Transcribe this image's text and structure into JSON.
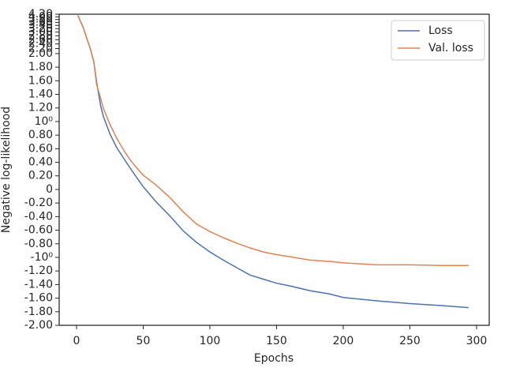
{
  "chart_data": {
    "type": "line",
    "xlabel": "Epochs",
    "ylabel": "Negative log-likelihood",
    "x": [
      1,
      5,
      10,
      13,
      15,
      18,
      20,
      25,
      30,
      35,
      40,
      45,
      50,
      60,
      70,
      80,
      90,
      100,
      110,
      120,
      130,
      140,
      150,
      160,
      175,
      190,
      200,
      225,
      250,
      275,
      294
    ],
    "series": [
      {
        "name": "Loss",
        "color": "#4c72b0",
        "values": [
          4.1,
          3.27,
          2.25,
          1.88,
          1.59,
          1.24,
          1.08,
          0.82,
          0.62,
          0.47,
          0.32,
          0.18,
          0.04,
          -0.19,
          -0.39,
          -0.61,
          -0.78,
          -0.92,
          -1.04,
          -1.15,
          -1.26,
          -1.32,
          -1.38,
          -1.42,
          -1.49,
          -1.54,
          -1.59,
          -1.64,
          -1.68,
          -1.71,
          -1.74
        ]
      },
      {
        "name": "Val. loss",
        "color": "#dd8452",
        "values": [
          4.1,
          3.27,
          2.25,
          1.88,
          1.55,
          1.35,
          1.2,
          0.96,
          0.76,
          0.59,
          0.44,
          0.32,
          0.21,
          0.06,
          -0.12,
          -0.33,
          -0.51,
          -0.62,
          -0.71,
          -0.79,
          -0.86,
          -0.92,
          -0.96,
          -0.99,
          -1.04,
          -1.06,
          -1.08,
          -1.11,
          -1.11,
          -1.12,
          -1.12
        ]
      }
    ],
    "xlim": [
      -13,
      309.5
    ],
    "xticks": [
      0,
      50,
      100,
      150,
      200,
      250,
      300
    ],
    "ylim": [
      -2,
      4.2
    ],
    "yscale": "symlog",
    "linthresh": 2,
    "linscale": 1,
    "yticks": [
      {
        "value": -2,
        "label": "-2.00"
      },
      {
        "value": -1.8,
        "label": "-1.80"
      },
      {
        "value": -1.6,
        "label": "-1.60"
      },
      {
        "value": -1.4,
        "label": "-1.40"
      },
      {
        "value": -1.2,
        "label": "-1.20"
      },
      {
        "value": -1,
        "label": "-10⁰"
      },
      {
        "value": -0.8,
        "label": "-0.80"
      },
      {
        "value": -0.6,
        "label": "-0.60"
      },
      {
        "value": -0.4,
        "label": "-0.40"
      },
      {
        "value": -0.2,
        "label": "-0.20"
      },
      0,
      {
        "value": 0.2,
        "label": "0.20"
      },
      {
        "value": 0.4,
        "label": "0.40"
      },
      {
        "value": 0.6,
        "label": "0.60"
      },
      {
        "value": 0.8,
        "label": "0.80"
      },
      {
        "value": 1,
        "label": "10⁰"
      },
      {
        "value": 1.2,
        "label": "1.20"
      },
      {
        "value": 1.4,
        "label": "1.40"
      },
      {
        "value": 1.6,
        "label": "1.60"
      },
      {
        "value": 1.8,
        "label": "1.80"
      },
      {
        "value": 2,
        "label": "2.00"
      },
      {
        "value": 2.2,
        "label": "2.20"
      },
      {
        "value": 2.4,
        "label": "2.40"
      },
      {
        "value": 2.6,
        "label": "2.60"
      },
      {
        "value": 2.8,
        "label": "2.80"
      },
      {
        "value": 3,
        "label": "3.00"
      },
      {
        "value": 3.2,
        "label": "3.20"
      },
      {
        "value": 3.4,
        "label": "3.40"
      },
      {
        "value": 3.6,
        "label": "3.60"
      },
      {
        "value": 3.8,
        "label": "3.80"
      },
      {
        "value": 4,
        "label": "4.00"
      },
      {
        "value": 4.2,
        "label": "4.20"
      }
    ],
    "legend": "upper right"
  }
}
